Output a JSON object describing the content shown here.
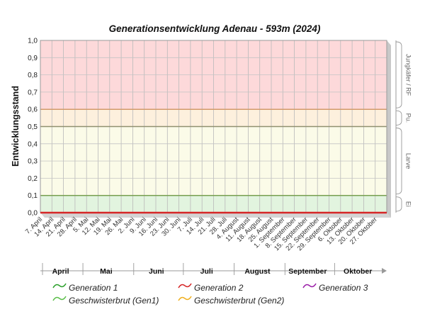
{
  "chart_data": {
    "type": "line",
    "title": "Generationsentwicklung Adenau - 593m (2024)",
    "ylabel": "Entwicklungsstand",
    "xlabel": "",
    "ylim": [
      0,
      1
    ],
    "yticks": [
      "0,0",
      "0,1",
      "0,2",
      "0,3",
      "0,4",
      "0,5",
      "0,6",
      "0,7",
      "0,8",
      "0,9",
      "1,0"
    ],
    "grid": true,
    "x": [
      "7. April",
      "14. April",
      "21. April",
      "28. April",
      "5. Mai",
      "12. Mai",
      "19. Mai",
      "26. Mai",
      "2. Juni",
      "9. Juni",
      "16. Juni",
      "23. Juni",
      "30. Juni",
      "7. Juli",
      "14. Juli",
      "21. Juli",
      "28. Juli",
      "4. August",
      "11. August",
      "18. August",
      "25. August",
      "1. September",
      "8. September",
      "15. September",
      "22. September",
      "29. September",
      "6. Oktober",
      "13. Oktober",
      "20. Oktober",
      "27. Oktober"
    ],
    "months": [
      {
        "label": "April",
        "start_week": 0,
        "end_week": 3.5
      },
      {
        "label": "Mai",
        "start_week": 3.5,
        "end_week": 7.9
      },
      {
        "label": "Juni",
        "start_week": 7.9,
        "end_week": 12.2
      },
      {
        "label": "Juli",
        "start_week": 12.2,
        "end_week": 16.6
      },
      {
        "label": "August",
        "start_week": 16.6,
        "end_week": 21.0
      },
      {
        "label": "September",
        "start_week": 21.0,
        "end_week": 25.3
      },
      {
        "label": "Oktober",
        "start_week": 25.3,
        "end_week": 30
      }
    ],
    "stages": [
      {
        "label": "Ei",
        "from": 0.0,
        "to": 0.1,
        "color": "#e2f4df"
      },
      {
        "label": "Larve",
        "from": 0.1,
        "to": 0.5,
        "color": "#fbfbe8"
      },
      {
        "label": "Pu.",
        "from": 0.5,
        "to": 0.6,
        "color": "#fdf0dd"
      },
      {
        "label": "Jungkäfer / RF",
        "from": 0.6,
        "to": 1.0,
        "color": "#fdd9da"
      }
    ],
    "stage_boundary_colors": {
      "0.1": "#78a050",
      "0.5": "#909070",
      "0.6": "#d49a6a"
    },
    "series": [
      {
        "name": "Generation 1",
        "color": "#2ca02c",
        "x": [],
        "y": []
      },
      {
        "name": "Generation 2",
        "color": "#d62728",
        "x": [
          "7. April",
          "27. Oktober"
        ],
        "y": [
          0.0,
          0.0
        ]
      },
      {
        "name": "Generation 3",
        "color": "#9b1fa8",
        "x": [],
        "y": []
      },
      {
        "name": "Geschwisterbrut (Gen1)",
        "color": "#5cbf4a",
        "x": [],
        "y": []
      },
      {
        "name": "Geschwisterbrut (Gen2)",
        "color": "#f0b020",
        "x": [],
        "y": []
      }
    ]
  }
}
